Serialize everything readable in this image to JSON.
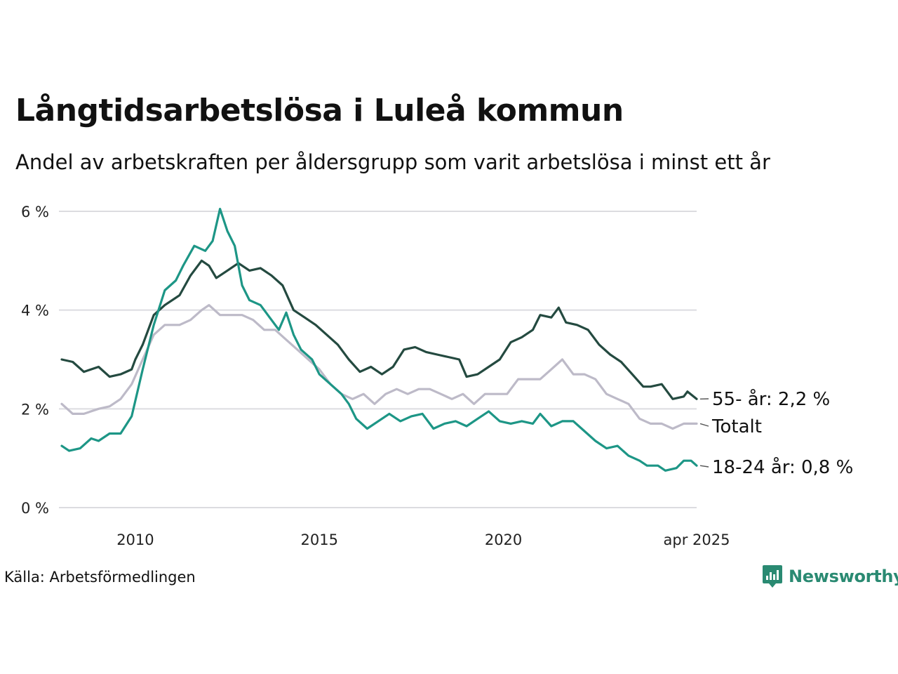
{
  "title": "Långtidsarbetslösa i Luleå kommun",
  "subtitle": "Andel av arbetskraften per åldersgrupp som varit arbetslösa i minst ett år",
  "source": "Källa: Arbetsförmedlingen",
  "brand": "Newsworthy",
  "colors": {
    "age55": "#244a40",
    "total": "#bdbac8",
    "age18": "#1d9686",
    "grid": "#dcdce0",
    "brand": "#2a8a72"
  },
  "chart_data": {
    "type": "line",
    "ylim": [
      0,
      6
    ],
    "y_ticks": [
      {
        "value": 0,
        "label": "0 %"
      },
      {
        "value": 2,
        "label": "2 %"
      },
      {
        "value": 4,
        "label": "4 %"
      },
      {
        "value": 6,
        "label": "6 %"
      }
    ],
    "x_ticks": [
      {
        "value": 2010,
        "label": "2010"
      },
      {
        "value": 2015,
        "label": "2015"
      },
      {
        "value": 2020,
        "label": "2020"
      },
      {
        "value": 2025.25,
        "label": "apr 2025"
      }
    ],
    "xlim": [
      2008.0,
      2025.25
    ],
    "grid": true,
    "series": [
      {
        "name": "55- år",
        "label": "55- år: 2,2 %",
        "color_key": "age55",
        "points": [
          [
            2008.0,
            3.0
          ],
          [
            2008.3,
            2.95
          ],
          [
            2008.6,
            2.75
          ],
          [
            2009.0,
            2.85
          ],
          [
            2009.3,
            2.65
          ],
          [
            2009.6,
            2.7
          ],
          [
            2009.9,
            2.8
          ],
          [
            2010.0,
            3.0
          ],
          [
            2010.2,
            3.3
          ],
          [
            2010.5,
            3.9
          ],
          [
            2010.8,
            4.1
          ],
          [
            2011.2,
            4.3
          ],
          [
            2011.5,
            4.7
          ],
          [
            2011.8,
            5.0
          ],
          [
            2012.0,
            4.9
          ],
          [
            2012.2,
            4.65
          ],
          [
            2012.5,
            4.8
          ],
          [
            2012.8,
            4.95
          ],
          [
            2013.1,
            4.8
          ],
          [
            2013.4,
            4.85
          ],
          [
            2013.7,
            4.7
          ],
          [
            2014.0,
            4.5
          ],
          [
            2014.3,
            4.0
          ],
          [
            2014.6,
            3.85
          ],
          [
            2014.9,
            3.7
          ],
          [
            2015.2,
            3.5
          ],
          [
            2015.5,
            3.3
          ],
          [
            2015.8,
            3.0
          ],
          [
            2016.1,
            2.75
          ],
          [
            2016.4,
            2.85
          ],
          [
            2016.7,
            2.7
          ],
          [
            2017.0,
            2.85
          ],
          [
            2017.3,
            3.2
          ],
          [
            2017.6,
            3.25
          ],
          [
            2017.9,
            3.15
          ],
          [
            2018.2,
            3.1
          ],
          [
            2018.5,
            3.05
          ],
          [
            2018.8,
            3.0
          ],
          [
            2019.0,
            2.65
          ],
          [
            2019.3,
            2.7
          ],
          [
            2019.6,
            2.85
          ],
          [
            2019.9,
            3.0
          ],
          [
            2020.2,
            3.35
          ],
          [
            2020.5,
            3.45
          ],
          [
            2020.8,
            3.6
          ],
          [
            2021.0,
            3.9
          ],
          [
            2021.3,
            3.85
          ],
          [
            2021.5,
            4.05
          ],
          [
            2021.7,
            3.75
          ],
          [
            2022.0,
            3.7
          ],
          [
            2022.3,
            3.6
          ],
          [
            2022.6,
            3.3
          ],
          [
            2022.9,
            3.1
          ],
          [
            2023.2,
            2.95
          ],
          [
            2023.5,
            2.7
          ],
          [
            2023.8,
            2.45
          ],
          [
            2024.0,
            2.45
          ],
          [
            2024.3,
            2.5
          ],
          [
            2024.6,
            2.2
          ],
          [
            2024.9,
            2.25
          ],
          [
            2025.0,
            2.35
          ],
          [
            2025.25,
            2.2
          ]
        ]
      },
      {
        "name": "Totalt",
        "label": "Totalt",
        "color_key": "total",
        "points": [
          [
            2008.0,
            2.1
          ],
          [
            2008.3,
            1.9
          ],
          [
            2008.6,
            1.9
          ],
          [
            2009.0,
            2.0
          ],
          [
            2009.3,
            2.05
          ],
          [
            2009.6,
            2.2
          ],
          [
            2009.9,
            2.5
          ],
          [
            2010.2,
            3.0
          ],
          [
            2010.5,
            3.5
          ],
          [
            2010.8,
            3.7
          ],
          [
            2011.2,
            3.7
          ],
          [
            2011.5,
            3.8
          ],
          [
            2011.8,
            4.0
          ],
          [
            2012.0,
            4.1
          ],
          [
            2012.3,
            3.9
          ],
          [
            2012.6,
            3.9
          ],
          [
            2012.9,
            3.9
          ],
          [
            2013.2,
            3.8
          ],
          [
            2013.5,
            3.6
          ],
          [
            2013.8,
            3.6
          ],
          [
            2014.1,
            3.4
          ],
          [
            2014.4,
            3.2
          ],
          [
            2014.7,
            3.0
          ],
          [
            2015.0,
            2.8
          ],
          [
            2015.3,
            2.5
          ],
          [
            2015.6,
            2.3
          ],
          [
            2015.9,
            2.2
          ],
          [
            2016.2,
            2.3
          ],
          [
            2016.5,
            2.1
          ],
          [
            2016.8,
            2.3
          ],
          [
            2017.1,
            2.4
          ],
          [
            2017.4,
            2.3
          ],
          [
            2017.7,
            2.4
          ],
          [
            2018.0,
            2.4
          ],
          [
            2018.3,
            2.3
          ],
          [
            2018.6,
            2.2
          ],
          [
            2018.9,
            2.3
          ],
          [
            2019.2,
            2.1
          ],
          [
            2019.5,
            2.3
          ],
          [
            2019.8,
            2.3
          ],
          [
            2020.1,
            2.3
          ],
          [
            2020.4,
            2.6
          ],
          [
            2020.7,
            2.6
          ],
          [
            2021.0,
            2.6
          ],
          [
            2021.3,
            2.8
          ],
          [
            2021.6,
            3.0
          ],
          [
            2021.9,
            2.7
          ],
          [
            2022.2,
            2.7
          ],
          [
            2022.5,
            2.6
          ],
          [
            2022.8,
            2.3
          ],
          [
            2023.1,
            2.2
          ],
          [
            2023.4,
            2.1
          ],
          [
            2023.7,
            1.8
          ],
          [
            2024.0,
            1.7
          ],
          [
            2024.3,
            1.7
          ],
          [
            2024.6,
            1.6
          ],
          [
            2024.9,
            1.7
          ],
          [
            2025.25,
            1.7
          ]
        ]
      },
      {
        "name": "18-24 år",
        "label": "18-24 år: 0,8 %",
        "color_key": "age18",
        "points": [
          [
            2008.0,
            1.25
          ],
          [
            2008.2,
            1.15
          ],
          [
            2008.5,
            1.2
          ],
          [
            2008.8,
            1.4
          ],
          [
            2009.0,
            1.35
          ],
          [
            2009.3,
            1.5
          ],
          [
            2009.6,
            1.5
          ],
          [
            2009.9,
            1.85
          ],
          [
            2010.2,
            2.8
          ],
          [
            2010.5,
            3.7
          ],
          [
            2010.8,
            4.4
          ],
          [
            2011.1,
            4.6
          ],
          [
            2011.3,
            4.9
          ],
          [
            2011.6,
            5.3
          ],
          [
            2011.9,
            5.2
          ],
          [
            2012.1,
            5.4
          ],
          [
            2012.3,
            6.05
          ],
          [
            2012.5,
            5.6
          ],
          [
            2012.7,
            5.3
          ],
          [
            2012.9,
            4.5
          ],
          [
            2013.1,
            4.2
          ],
          [
            2013.4,
            4.1
          ],
          [
            2013.7,
            3.8
          ],
          [
            2013.9,
            3.6
          ],
          [
            2014.1,
            3.95
          ],
          [
            2014.3,
            3.5
          ],
          [
            2014.5,
            3.2
          ],
          [
            2014.8,
            3.0
          ],
          [
            2015.0,
            2.7
          ],
          [
            2015.3,
            2.5
          ],
          [
            2015.6,
            2.3
          ],
          [
            2015.8,
            2.1
          ],
          [
            2016.0,
            1.8
          ],
          [
            2016.3,
            1.6
          ],
          [
            2016.6,
            1.75
          ],
          [
            2016.9,
            1.9
          ],
          [
            2017.2,
            1.75
          ],
          [
            2017.5,
            1.85
          ],
          [
            2017.8,
            1.9
          ],
          [
            2018.1,
            1.6
          ],
          [
            2018.4,
            1.7
          ],
          [
            2018.7,
            1.75
          ],
          [
            2019.0,
            1.65
          ],
          [
            2019.3,
            1.8
          ],
          [
            2019.6,
            1.95
          ],
          [
            2019.9,
            1.75
          ],
          [
            2020.2,
            1.7
          ],
          [
            2020.5,
            1.75
          ],
          [
            2020.8,
            1.7
          ],
          [
            2021.0,
            1.9
          ],
          [
            2021.3,
            1.65
          ],
          [
            2021.6,
            1.75
          ],
          [
            2021.9,
            1.75
          ],
          [
            2022.2,
            1.55
          ],
          [
            2022.5,
            1.35
          ],
          [
            2022.8,
            1.2
          ],
          [
            2023.1,
            1.25
          ],
          [
            2023.4,
            1.05
          ],
          [
            2023.7,
            0.95
          ],
          [
            2023.9,
            0.85
          ],
          [
            2024.2,
            0.85
          ],
          [
            2024.4,
            0.75
          ],
          [
            2024.7,
            0.8
          ],
          [
            2024.9,
            0.95
          ],
          [
            2025.1,
            0.95
          ],
          [
            2025.25,
            0.85
          ]
        ]
      }
    ]
  }
}
